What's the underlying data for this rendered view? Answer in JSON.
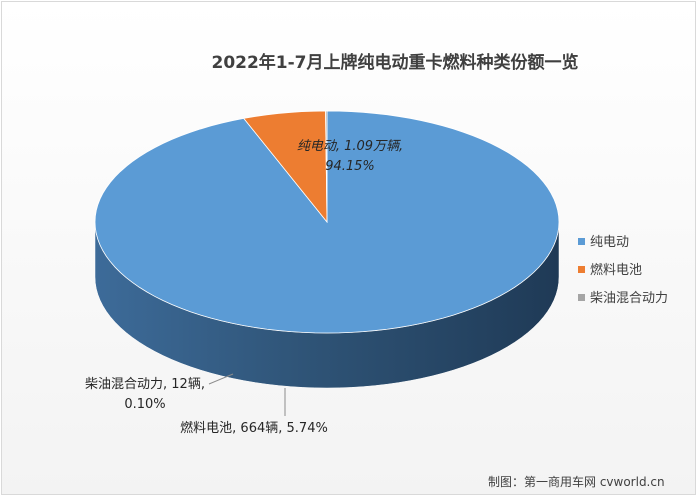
{
  "chart_data": {
    "type": "pie",
    "title": "2022年1-7月上牌纯电动重卡燃料种类份额一览",
    "three_d": true,
    "legend_position": "right",
    "slices": [
      {
        "name": "纯电动",
        "value_label": "1.09万辆",
        "percent": 94.15,
        "percent_label": "94.15%",
        "color": "#5b9bd5"
      },
      {
        "name": "燃料电池",
        "value_label": "664辆",
        "percent": 5.74,
        "percent_label": "5.74%",
        "color": "#ed7d31"
      },
      {
        "name": "柴油混合动力",
        "value_label": "12辆",
        "percent": 0.1,
        "percent_label": "0.10%",
        "color": "#a5a5a5"
      }
    ],
    "labels": {
      "ev_line1": "纯电动, 1.09万辆,",
      "ev_line2": "94.15%",
      "hybrid_line1": "柴油混合动力, 12辆,",
      "hybrid_line2": "0.10%",
      "fuelcell_line1": "燃料电池, 664辆, 5.74%"
    }
  },
  "credit": "制图：第一商用车网 cvworld.cn"
}
